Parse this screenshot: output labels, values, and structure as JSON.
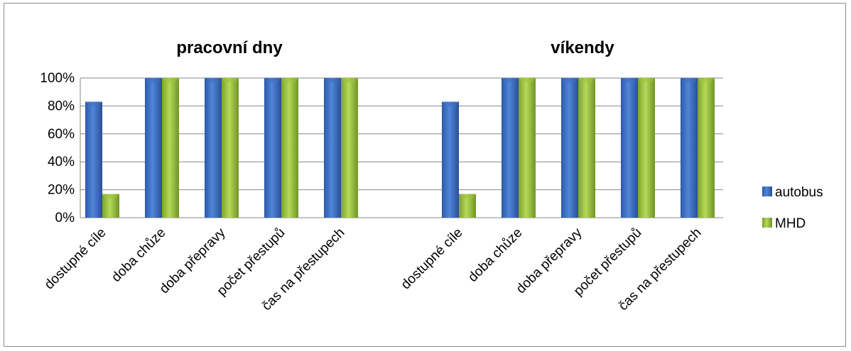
{
  "chart_data": {
    "type": "bar",
    "panels": [
      {
        "title": "pracovní dny",
        "categories": [
          "dostupné cíle",
          "doba chůze",
          "doba přepravy",
          "počet přestupů",
          "čas na přestupech"
        ],
        "series": [
          {
            "name": "autobus",
            "values": [
              83,
              100,
              100,
              100,
              100
            ]
          },
          {
            "name": "MHD",
            "values": [
              17,
              100,
              100,
              100,
              100
            ]
          }
        ]
      },
      {
        "title": "víkendy",
        "categories": [
          "dostupné cíle",
          "doba chůze",
          "doba přepravy",
          "počet přestupů",
          "čas na přestupech"
        ],
        "series": [
          {
            "name": "autobus",
            "values": [
              83,
              100,
              100,
              100,
              100
            ]
          },
          {
            "name": "MHD",
            "values": [
              17,
              100,
              100,
              100,
              100
            ]
          }
        ]
      }
    ],
    "y_ticks": [
      "0%",
      "20%",
      "40%",
      "60%",
      "80%",
      "100%"
    ],
    "ylim": [
      0,
      100
    ],
    "grid": true,
    "legend": {
      "position": "right",
      "entries": [
        "autobus",
        "MHD"
      ]
    },
    "colors": {
      "autobus": "#3f6fc6",
      "MHD": "#9bc43c"
    }
  }
}
